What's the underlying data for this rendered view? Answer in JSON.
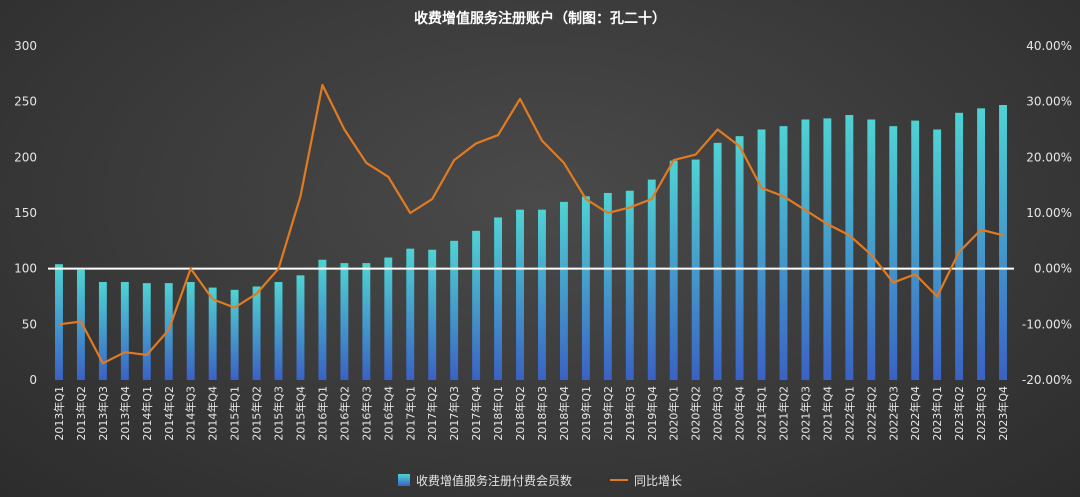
{
  "chart_data": {
    "type": "bar",
    "title": "收费增值服务注册账户（制图：孔二十）",
    "categories": [
      "2013年Q1",
      "2013年Q2",
      "2013年Q3",
      "2013年Q4",
      "2014年Q1",
      "2014年Q2",
      "2014年Q3",
      "2014年Q4",
      "2015年Q1",
      "2015年Q2",
      "2015年Q3",
      "2015年Q4",
      "2016年Q1",
      "2016年Q2",
      "2016年Q3",
      "2016年Q4",
      "2017年Q1",
      "2017年Q2",
      "2017年Q3",
      "2017年Q4",
      "2018年Q1",
      "2018年Q2",
      "2018年Q3",
      "2018年Q4",
      "2019年Q1",
      "2019年Q2",
      "2019年Q3",
      "2019年Q4",
      "2020年Q1",
      "2020年Q2",
      "2020年Q3",
      "2020年Q4",
      "2021年Q1",
      "2021年Q2",
      "2021年Q3",
      "2021年Q4",
      "2022年Q1",
      "2022年Q2",
      "2022年Q3",
      "2022年Q4",
      "2023年Q1",
      "2023年Q2",
      "2023年Q3",
      "2023年Q4"
    ],
    "series": [
      {
        "name": "收费增值服务注册付费会员数",
        "kind": "bar",
        "axis": "left",
        "values": [
          104,
          99,
          88,
          88,
          87,
          87,
          88,
          83,
          81,
          84,
          88,
          94,
          108,
          105,
          105,
          110,
          118,
          117,
          125,
          134,
          146,
          153,
          153,
          160,
          165,
          168,
          170,
          180,
          197,
          198,
          213,
          219,
          225,
          228,
          234,
          235,
          238,
          234,
          228,
          233,
          225,
          240,
          244,
          247
        ]
      },
      {
        "name": "同比增长",
        "kind": "line",
        "axis": "right",
        "values": [
          -10.0,
          -9.5,
          -17.0,
          -15.0,
          -15.5,
          -11.0,
          0.0,
          -5.5,
          -7.0,
          -4.5,
          0.0,
          13.0,
          33.0,
          25.0,
          19.0,
          16.5,
          10.0,
          12.5,
          19.5,
          22.5,
          24.0,
          30.5,
          23.0,
          19.0,
          12.5,
          10.0,
          11.0,
          12.5,
          19.5,
          20.5,
          25.0,
          22.0,
          14.5,
          13.0,
          10.5,
          8.0,
          6.0,
          2.5,
          -2.5,
          -1.0,
          -5.0,
          3.0,
          7.0,
          6.0
        ]
      }
    ],
    "y_left": {
      "min": 0,
      "max": 300,
      "ticks": [
        "0",
        "50",
        "100",
        "150",
        "200",
        "250",
        "300"
      ]
    },
    "y_right": {
      "min": -20,
      "max": 40,
      "ticks": [
        "-20.00%",
        "-10.00%",
        "0.00%",
        "10.00%",
        "20.00%",
        "30.00%",
        "40.00%"
      ]
    },
    "reference_line": {
      "axis": "left",
      "value": 100,
      "color": "#ffffff"
    },
    "grid": false,
    "legend_position": "bottom",
    "colors": {
      "bar_top": "#4fd3d3",
      "bar_bottom": "#3a62c4",
      "line": "#e07b22",
      "text": "#e6e6e6"
    }
  }
}
